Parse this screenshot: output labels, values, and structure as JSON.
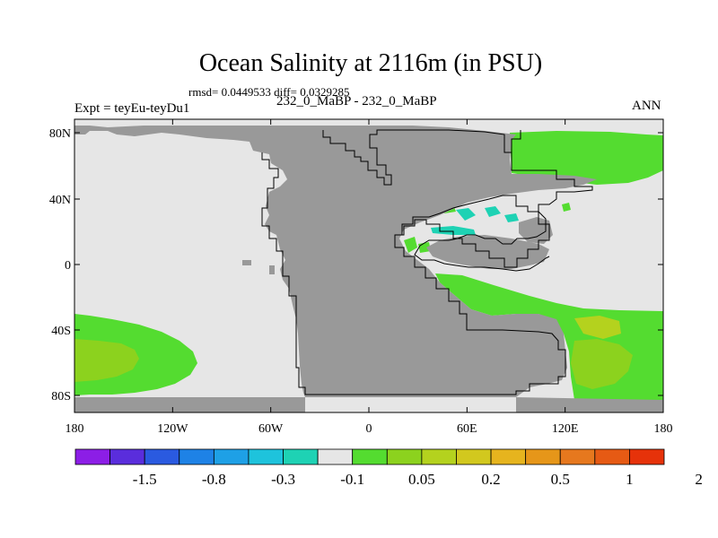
{
  "title": "Ocean Salinity at 2116m (in PSU)",
  "stats": "rmsd= 0.0449533 diff= 0.0329285",
  "experiment": "Expt = teyEu-teyDu1",
  "subtitle": "232_0_MaBP - 232_0_MaBP",
  "season": "ANN",
  "lat_ticks": [
    "80N",
    "40N",
    "0",
    "40S",
    "80S"
  ],
  "lon_ticks": [
    "180",
    "120W",
    "60W",
    "0",
    "60E",
    "120E",
    "180"
  ],
  "colorbar": {
    "labels": [
      "-1.5",
      "-0.8",
      "-0.3",
      "-0.1",
      "0.05",
      "0.2",
      "0.5",
      "1",
      "2"
    ],
    "colors": [
      "#8c1ee6",
      "#5a2ddc",
      "#2a5ae0",
      "#1e82e6",
      "#1ea0e6",
      "#1ec3dc",
      "#1ed2b4",
      "#e6e6e6",
      "#54dc30",
      "#8cd21e",
      "#b4d21e",
      "#d2c81e",
      "#e6b41e",
      "#e69619",
      "#e6781e",
      "#e65a14",
      "#e6320a"
    ]
  },
  "colors": {
    "land": "#999999",
    "neutral": "#e6e6e6",
    "green": "#54dc30",
    "yellowgreen": "#8cd21e",
    "lime": "#b4d21e",
    "cyan": "#1ed2b4"
  }
}
